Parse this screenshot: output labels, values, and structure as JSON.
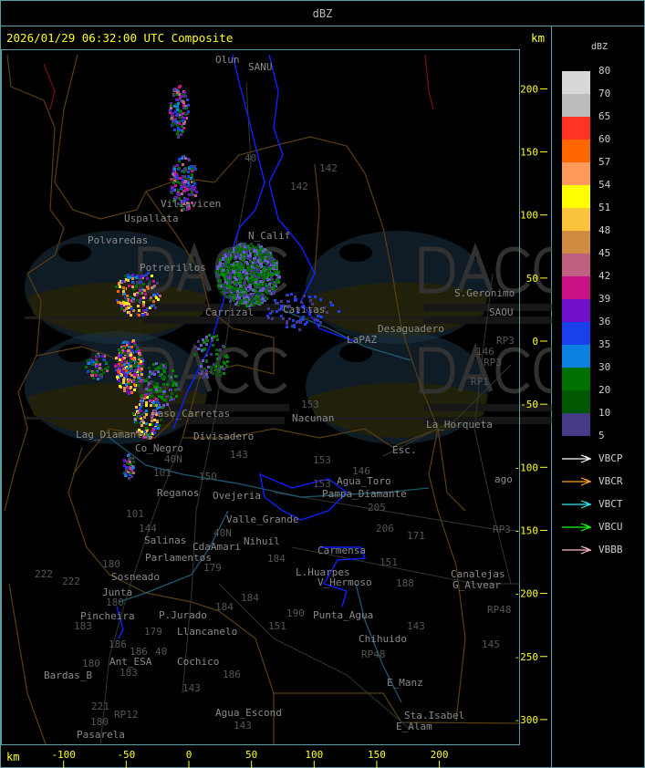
{
  "header": {
    "title": "dBZ"
  },
  "map": {
    "timestamp": "2026/01/29 06:32:00 UTC Composite",
    "unit_top": "km",
    "unit_bottom": "km",
    "y_axis_ticks": [
      200,
      150,
      100,
      50,
      0,
      -50,
      -100,
      -150,
      -200,
      -250,
      -300
    ],
    "x_axis_ticks": [
      -100,
      -50,
      0,
      50,
      100,
      150,
      200
    ],
    "places": [
      "Olun",
      "SANU",
      "40",
      "142",
      "142",
      "Villavicen",
      "Uspallata",
      "Polvaredas",
      "N_Calif",
      "Potrerillos",
      "Carrizal",
      "Catitas",
      "Desaguadero",
      "S.Geronimo",
      "SAOU",
      "LaPAZ",
      "RP3",
      "146",
      "RP3",
      "RP1",
      "153",
      "Nacunan",
      "La_Horqueta",
      "Paso_Carretas",
      "Lag_Diamante",
      "Co_Negro",
      "Divisadero",
      "40N",
      "Esc.",
      "143",
      "153",
      "146",
      "101",
      "150",
      "153",
      "Agua_Toro",
      "Reganos",
      "Ovejeria",
      "205",
      "206",
      "171",
      "Pampa_Diamante",
      "101",
      "144",
      "Valle_Grande",
      "40N",
      "Salinas",
      "CdaAmari",
      "Parlamentos",
      "Sosneado",
      "180",
      "Nihuil",
      "179",
      "184",
      "L.Huarpes",
      "151",
      "188",
      "Canalejas",
      "G_Alvear",
      "Carmensa",
      "V_Hermoso",
      "222",
      "222",
      "Junta",
      "180",
      "184",
      "184",
      "P.Jurado",
      "Pincheira",
      "183",
      "Llancanelo",
      "179",
      "190",
      "Punta_Agua",
      "151",
      "143",
      "Chihuido",
      "186",
      "186",
      "40",
      "Ant_ESA",
      "183",
      "Cochico",
      "RP48",
      "RP48",
      "145",
      "Bardas_B",
      "180",
      "186",
      "143",
      "E_Manz",
      "221",
      "180",
      "Agua_Escond",
      "143",
      "Sta.Isabel",
      "E_Alam",
      "Pasarela",
      "RP12",
      "RP3",
      "ago"
    ],
    "watermark": {
      "logo": "DACC",
      "line1": "Dirección de Agricultura",
      "line2": "y Contingencias Climáticas",
      "url": "http://www.contingencias.mendoza.gov.ar"
    }
  },
  "legend": {
    "title": "dBZ",
    "scale": [
      {
        "label": "80",
        "color": "#d8d8d8"
      },
      {
        "label": "70",
        "color": "#bcbcbc"
      },
      {
        "label": "65",
        "color": "#ff3322"
      },
      {
        "label": "60",
        "color": "#ff6600"
      },
      {
        "label": "57",
        "color": "#ff9a5a"
      },
      {
        "label": "54",
        "color": "#ffff00"
      },
      {
        "label": "51",
        "color": "#fcc43c"
      },
      {
        "label": "48",
        "color": "#d08c40"
      },
      {
        "label": "45",
        "color": "#c06080"
      },
      {
        "label": "42",
        "color": "#cc1088"
      },
      {
        "label": "39",
        "color": "#7010c8"
      },
      {
        "label": "36",
        "color": "#1a40ee"
      },
      {
        "label": "35",
        "color": "#0a80e0"
      },
      {
        "label": "30",
        "color": "#007000"
      },
      {
        "label": "20",
        "color": "#005800"
      },
      {
        "label": "10",
        "color": "#443a88"
      },
      {
        "label": "5",
        "color": ""
      }
    ],
    "vectors": [
      {
        "label": "VBCP",
        "color": "#ffffff"
      },
      {
        "label": "VBCR",
        "color": "#ffa020"
      },
      {
        "label": "VBCT",
        "color": "#30e8f0"
      },
      {
        "label": "VBCU",
        "color": "#10ff10"
      },
      {
        "label": "VBBB",
        "color": "#ffb8c8"
      }
    ]
  }
}
